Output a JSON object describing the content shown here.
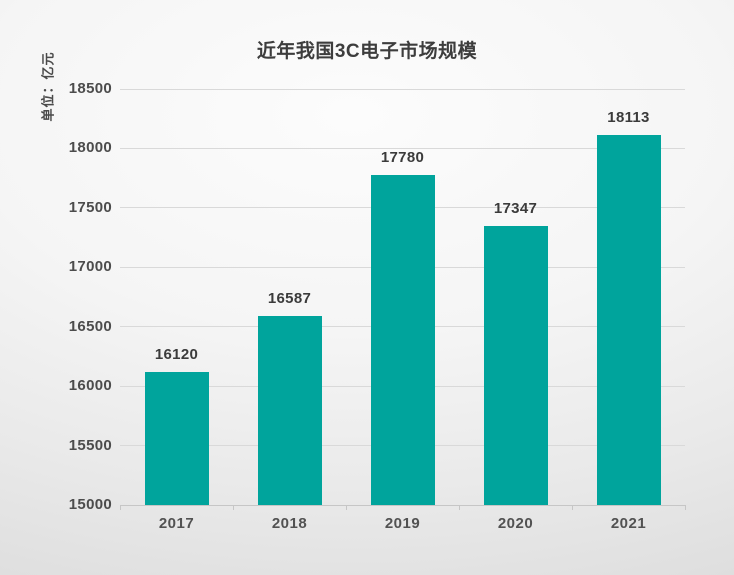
{
  "chart_data": {
    "type": "bar",
    "title": "近年我国3C电子市场规模",
    "unit_label": "单位：亿元",
    "categories": [
      "2017",
      "2018",
      "2019",
      "2020",
      "2021"
    ],
    "values": [
      16120,
      16587,
      17780,
      17347,
      18113
    ],
    "yticks": [
      15000,
      15500,
      16000,
      16500,
      17000,
      17500,
      18000,
      18500
    ],
    "ylim": [
      15000,
      18500
    ],
    "grid": true,
    "legend": "none",
    "bar_color": "#00A49C",
    "label_color": "#3b3b3b",
    "background": "light-gray-gradient"
  }
}
